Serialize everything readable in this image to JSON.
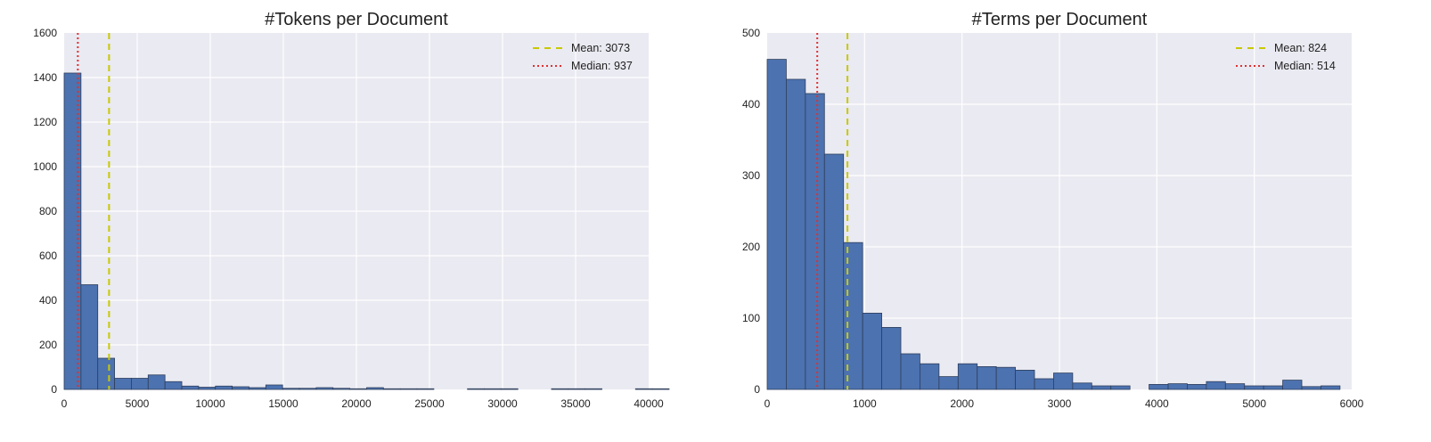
{
  "colors": {
    "plot_background": "#eaeaf2",
    "grid": "#ffffff",
    "bar_fill": "#4c72b0",
    "bar_edge": "#2e3f5c",
    "mean_line": "#c8c800",
    "median_line": "#e03030"
  },
  "chart_data": [
    {
      "type": "bar",
      "subtype": "histogram",
      "title": "#Tokens per Document",
      "xlabel": "",
      "ylabel": "",
      "xlim": [
        0,
        40000
      ],
      "ylim": [
        0,
        1600
      ],
      "xticks": [
        0,
        5000,
        10000,
        15000,
        20000,
        25000,
        30000,
        35000,
        40000
      ],
      "yticks": [
        0,
        200,
        400,
        600,
        800,
        1000,
        1200,
        1400,
        1600
      ],
      "grid": true,
      "legend_position": "top-right",
      "bins": {
        "start": 0,
        "width": 1150,
        "counts": [
          1420,
          470,
          140,
          50,
          50,
          65,
          35,
          15,
          10,
          15,
          12,
          8,
          20,
          5,
          5,
          8,
          5,
          3,
          8,
          3,
          3,
          3,
          0,
          0,
          3,
          3,
          3,
          0,
          0,
          3,
          3,
          3,
          0,
          0,
          3,
          3,
          0,
          0,
          0,
          0
        ]
      },
      "reference_lines": [
        {
          "label": "Mean: 3073",
          "value": 3073,
          "style": "dashed",
          "color_key": "mean_line"
        },
        {
          "label": "Median: 937",
          "value": 937,
          "style": "dotted",
          "color_key": "median_line"
        }
      ]
    },
    {
      "type": "bar",
      "subtype": "histogram",
      "title": "#Terms per Document",
      "xlabel": "",
      "ylabel": "",
      "xlim": [
        0,
        6000
      ],
      "ylim": [
        0,
        500
      ],
      "xticks": [
        0,
        1000,
        2000,
        3000,
        4000,
        5000,
        6000
      ],
      "yticks": [
        0,
        100,
        200,
        300,
        400,
        500
      ],
      "grid": true,
      "legend_position": "top-right",
      "bins": {
        "start": 0,
        "width": 196,
        "counts": [
          463,
          435,
          415,
          330,
          206,
          107,
          87,
          50,
          36,
          18,
          36,
          32,
          31,
          27,
          15,
          23,
          9,
          5,
          5,
          0,
          7,
          8,
          7,
          11,
          8,
          5,
          5,
          13,
          4,
          5,
          0
        ]
      },
      "reference_lines": [
        {
          "label": "Mean: 824",
          "value": 824,
          "style": "dashed",
          "color_key": "mean_line"
        },
        {
          "label": "Median: 514",
          "value": 514,
          "style": "dotted",
          "color_key": "median_line"
        }
      ]
    }
  ]
}
